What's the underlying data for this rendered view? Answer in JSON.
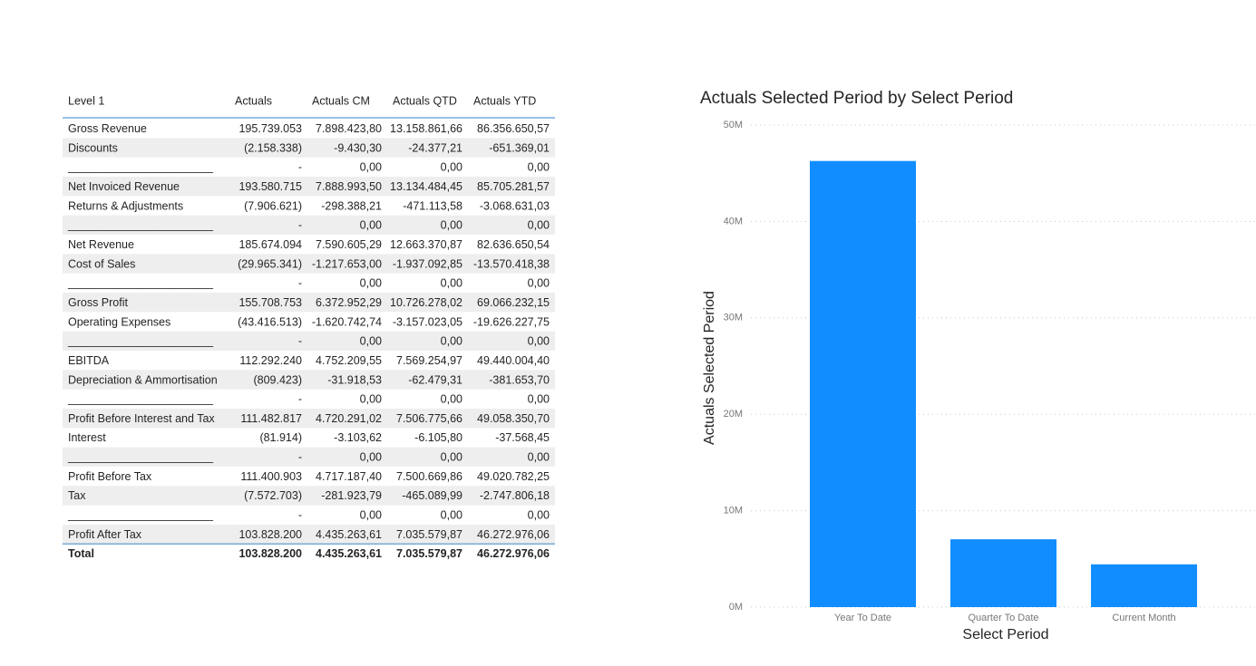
{
  "table": {
    "header": [
      "Level 1",
      "Actuals",
      "Actuals CM",
      "Actuals QTD",
      "Actuals YTD"
    ],
    "rows": [
      [
        "Gross Revenue",
        "195.739.053",
        "7.898.423,80",
        "13.158.861,66",
        "86.356.650,57"
      ],
      [
        "Discounts",
        "(2.158.338)",
        "-9.430,30",
        "-24.377,21",
        "-651.369,01"
      ],
      [
        "_______________________",
        "-",
        "0,00",
        "0,00",
        "0,00"
      ],
      [
        "Net Invoiced Revenue",
        "193.580.715",
        "7.888.993,50",
        "13.134.484,45",
        "85.705.281,57"
      ],
      [
        "Returns & Adjustments",
        "(7.906.621)",
        "-298.388,21",
        "-471.113,58",
        "-3.068.631,03"
      ],
      [
        "_______________________",
        "-",
        "0,00",
        "0,00",
        "0,00"
      ],
      [
        "Net Revenue",
        "185.674.094",
        "7.590.605,29",
        "12.663.370,87",
        "82.636.650,54"
      ],
      [
        "Cost of Sales",
        "(29.965.341)",
        "-1.217.653,00",
        "-1.937.092,85",
        "-13.570.418,38"
      ],
      [
        "_______________________",
        "-",
        "0,00",
        "0,00",
        "0,00"
      ],
      [
        "Gross Profit",
        "155.708.753",
        "6.372.952,29",
        "10.726.278,02",
        "69.066.232,15"
      ],
      [
        "Operating Expenses",
        "(43.416.513)",
        "-1.620.742,74",
        "-3.157.023,05",
        "-19.626.227,75"
      ],
      [
        "_______________________",
        "-",
        "0,00",
        "0,00",
        "0,00"
      ],
      [
        "EBITDA",
        "112.292.240",
        "4.752.209,55",
        "7.569.254,97",
        "49.440.004,40"
      ],
      [
        "Depreciation & Ammortisation",
        "(809.423)",
        "-31.918,53",
        "-62.479,31",
        "-381.653,70"
      ],
      [
        "_______________________",
        "-",
        "0,00",
        "0,00",
        "0,00"
      ],
      [
        "Profit Before Interest and Tax",
        "111.482.817",
        "4.720.291,02",
        "7.506.775,66",
        "49.058.350,70"
      ],
      [
        "Interest",
        "(81.914)",
        "-3.103,62",
        "-6.105,80",
        "-37.568,45"
      ],
      [
        "_______________________",
        "-",
        "0,00",
        "0,00",
        "0,00"
      ],
      [
        "Profit Before Tax",
        "111.400.903",
        "4.717.187,40",
        "7.500.669,86",
        "49.020.782,25"
      ],
      [
        "Tax",
        "(7.572.703)",
        "-281.923,79",
        "-465.089,99",
        "-2.747.806,18"
      ],
      [
        "_______________________",
        "-",
        "0,00",
        "0,00",
        "0,00"
      ],
      [
        "Profit After Tax",
        "103.828.200",
        "4.435.263,61",
        "7.035.579,87",
        "46.272.976,06"
      ]
    ],
    "total": [
      "Total",
      "103.828.200",
      "4.435.263,61",
      "7.035.579,87",
      "46.272.976,06"
    ]
  },
  "chart_data": {
    "type": "bar",
    "title": "Actuals Selected Period by Select Period",
    "x_label": "Select Period",
    "y_label": "Actuals Selected Period",
    "categories": [
      "Year To Date",
      "Quarter To Date",
      "Current Month"
    ],
    "values": [
      46272976.06,
      7035579.87,
      4435263.61
    ],
    "color": "#118DFF",
    "ylim": [
      0,
      50000000
    ],
    "yticks": [
      {
        "value": 0,
        "label": "0M"
      },
      {
        "value": 10000000,
        "label": "10M"
      },
      {
        "value": 20000000,
        "label": "20M"
      },
      {
        "value": 30000000,
        "label": "30M"
      },
      {
        "value": 40000000,
        "label": "40M"
      },
      {
        "value": 50000000,
        "label": "50M"
      }
    ],
    "grid": true
  }
}
